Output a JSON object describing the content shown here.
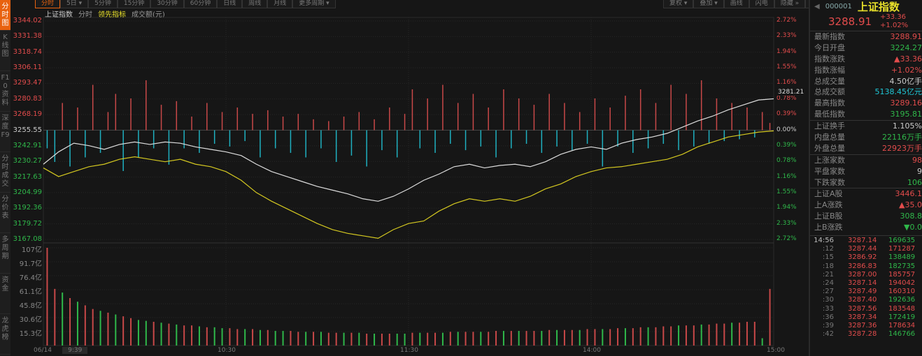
{
  "sidebar": [
    "分时图",
    "K线图",
    "F10资料",
    "深度F9",
    "分时成交",
    "分价表",
    "多周期",
    "资金",
    "龙虎榜"
  ],
  "toolbar": {
    "left": [
      "分时",
      "5日 ▾",
      "5分钟",
      "15分钟",
      "30分钟",
      "60分钟",
      "日线",
      "周线",
      "月线",
      "更多周期 ▾"
    ],
    "right": [
      "复权 ▾",
      "叠加 ▾",
      "画线",
      "闪电",
      "隐藏 »",
      "⤢"
    ]
  },
  "legend": {
    "index": "上证指数",
    "mode": "分时",
    "lead": "领先指标",
    "amount": "成交额(元)"
  },
  "colors": {
    "up": "#e24c4c",
    "down": "#2fb84a",
    "white": "#dddddd",
    "yellow": "#d4c820",
    "cyan": "#1fc7d6",
    "accent": "#e8620f"
  },
  "price_labels": [
    {
      "v": "3344.02",
      "c": "red"
    },
    {
      "v": "3331.38",
      "c": "red"
    },
    {
      "v": "3318.74",
      "c": "red"
    },
    {
      "v": "3306.11",
      "c": "red"
    },
    {
      "v": "3293.47",
      "c": "red"
    },
    {
      "v": "3280.83",
      "c": "red"
    },
    {
      "v": "3268.19",
      "c": "red"
    },
    {
      "v": "3255.55",
      "c": "white"
    },
    {
      "v": "3242.91",
      "c": "green"
    },
    {
      "v": "3230.27",
      "c": "green"
    },
    {
      "v": "3217.63",
      "c": "green"
    },
    {
      "v": "3204.99",
      "c": "green"
    },
    {
      "v": "3192.36",
      "c": "green"
    },
    {
      "v": "3179.72",
      "c": "green"
    },
    {
      "v": "3167.08",
      "c": "green"
    }
  ],
  "pct_labels": [
    "2.72%",
    "2.33%",
    "1.94%",
    "1.55%",
    "1.16%",
    "0.78%",
    "0.39%",
    "0.00%",
    "0.39%",
    "0.78%",
    "1.16%",
    "1.55%",
    "1.94%",
    "2.33%",
    "2.72%"
  ],
  "vol_labels": [
    "107亿",
    "91.7亿",
    "76.4亿",
    "61.1亿",
    "45.8亿",
    "30.6亿",
    "15.3亿"
  ],
  "time_labels": [
    "06/14",
    "9:39",
    "10:30",
    "11:30",
    "14:00",
    "15:00"
  ],
  "last_price_tag": "3281.21",
  "chart_data": {
    "type": "line",
    "price_range": [
      3167.08,
      3344.02
    ],
    "prev_close": 3255.55,
    "minutes_per_point": 5,
    "index_line": [
      3228,
      3238,
      3245,
      3243,
      3240,
      3244,
      3246,
      3244,
      3246,
      3245,
      3242,
      3240,
      3238,
      3235,
      3228,
      3222,
      3218,
      3214,
      3210,
      3207,
      3204,
      3200,
      3198,
      3202,
      3208,
      3215,
      3220,
      3226,
      3228,
      3225,
      3227,
      3228,
      3226,
      3230,
      3236,
      3240,
      3242,
      3240,
      3245,
      3248,
      3250,
      3253,
      3258,
      3263,
      3267,
      3272,
      3276,
      3280,
      3281
    ],
    "lead_line": [
      3225,
      3218,
      3222,
      3226,
      3228,
      3232,
      3234,
      3232,
      3230,
      3232,
      3228,
      3226,
      3222,
      3215,
      3205,
      3198,
      3192,
      3186,
      3180,
      3175,
      3172,
      3170,
      3168,
      3175,
      3180,
      3182,
      3190,
      3196,
      3200,
      3198,
      3200,
      3198,
      3202,
      3208,
      3212,
      3218,
      3222,
      3225,
      3226,
      3228,
      3230,
      3232,
      3236,
      3242,
      3246,
      3250,
      3252,
      3254,
      3255
    ],
    "lead_bars": [
      -20,
      -35,
      30,
      -40,
      25,
      -30,
      50,
      -25,
      20,
      40,
      -45,
      35,
      -30,
      55,
      -20,
      28,
      -38,
      32,
      -20,
      15,
      -25,
      30,
      -15,
      20,
      -18,
      25,
      -12,
      18,
      -30,
      22,
      -20,
      15,
      -25,
      18,
      -30,
      12,
      -20,
      10,
      -35,
      15,
      -28,
      20,
      -40,
      12,
      -22,
      25,
      -30,
      18,
      45,
      -20,
      35,
      -25,
      50,
      -15,
      30,
      -22,
      40,
      -18,
      25,
      -30,
      45,
      -20,
      35,
      -15,
      28,
      -25,
      40,
      -18,
      30,
      -22,
      20,
      -15,
      35,
      -40,
      25,
      -18,
      38,
      -25,
      45,
      -20,
      30,
      -15,
      50,
      -22,
      40,
      -18,
      55,
      -15,
      35,
      -12,
      30,
      -10,
      25,
      -8,
      20,
      8
    ],
    "volume": [
      107,
      62,
      58,
      52,
      48,
      44,
      40,
      38,
      36,
      34,
      32,
      30,
      28,
      27,
      26,
      25,
      24,
      23,
      22,
      22,
      21,
      20,
      20,
      19,
      19,
      18,
      18,
      18,
      17,
      17,
      16,
      16,
      16,
      15,
      15,
      15,
      15,
      14,
      14,
      14,
      14,
      14,
      13,
      13,
      13,
      13,
      13,
      13,
      14,
      14,
      14,
      14,
      14,
      15,
      15,
      15,
      15,
      15,
      15,
      16,
      16,
      16,
      16,
      16,
      16,
      16,
      17,
      17,
      17,
      17,
      17,
      18,
      18,
      18,
      18,
      19,
      19,
      19,
      20,
      20,
      20,
      21,
      21,
      22,
      22,
      22,
      23,
      23,
      24,
      24,
      25,
      25,
      26,
      26,
      8,
      62
    ],
    "volume_up": [
      1,
      1,
      0,
      1,
      0,
      1,
      1,
      0,
      1,
      0,
      1,
      1,
      0,
      0,
      1,
      0,
      1,
      0,
      1,
      1,
      0,
      1,
      0,
      0,
      1,
      1,
      0,
      1,
      0,
      1,
      0,
      0,
      1,
      1,
      0,
      1,
      0,
      1,
      1,
      0,
      1,
      0,
      1,
      0,
      1,
      1,
      0,
      0,
      1,
      0,
      1,
      1,
      0,
      1,
      0,
      1,
      1,
      0,
      1,
      1,
      0,
      1,
      0,
      1,
      1,
      0,
      1,
      0,
      1,
      1,
      0,
      1,
      1,
      0,
      1,
      1,
      0,
      1,
      1,
      0,
      1,
      1,
      1,
      0,
      1,
      1,
      0,
      1,
      1,
      1,
      0,
      1,
      1,
      1,
      0,
      1
    ],
    "vol_max": 107
  },
  "quote": {
    "code": "000001",
    "name": "上证指数",
    "price": "3288.91",
    "change": "+33.36",
    "pct": "+1.02%"
  },
  "stats": [
    {
      "k": "最新指数",
      "v": "3288.91",
      "c": "red"
    },
    {
      "k": "今日开盘",
      "v": "3224.27",
      "c": "green"
    },
    {
      "k": "指数涨跌",
      "v": "▲33.36",
      "c": "red"
    },
    {
      "k": "指数涨幅",
      "v": "+1.02%",
      "c": "red"
    },
    {
      "k": "总成交量",
      "v": "4.50亿手",
      "c": "white"
    },
    {
      "k": "总成交额",
      "v": "5138.45亿元",
      "c": "cyan"
    },
    {
      "k": "最高指数",
      "v": "3289.16",
      "c": "red"
    },
    {
      "k": "最低指数",
      "v": "3195.81",
      "c": "green",
      "sep": 1
    },
    {
      "k": "上证换手",
      "v": "1.105%",
      "c": "white"
    },
    {
      "k": "内盘总量",
      "v": "22116万手",
      "c": "green"
    },
    {
      "k": "外盘总量",
      "v": "22923万手",
      "c": "red",
      "sep": 1
    },
    {
      "k": "上涨家数",
      "v": "98",
      "c": "red"
    },
    {
      "k": "平盘家数",
      "v": "9",
      "c": "white"
    },
    {
      "k": "下跌家数",
      "v": "106",
      "c": "green",
      "sep": 1
    },
    {
      "k": "上证A股",
      "v": "3446.1",
      "c": "red"
    },
    {
      "k": "上A涨跌",
      "v": "▲35.0",
      "c": "red"
    },
    {
      "k": "上证B股",
      "v": "308.8",
      "c": "green"
    },
    {
      "k": "上B涨跌",
      "v": "▼0.0",
      "c": "green"
    }
  ],
  "ticks": [
    {
      "t": "14:56",
      "p": "3287.14",
      "v": "169635",
      "c": "green"
    },
    {
      "t": ":12",
      "p": "3287.44",
      "v": "171287",
      "c": "red"
    },
    {
      "t": ":15",
      "p": "3286.92",
      "v": "138489",
      "c": "green"
    },
    {
      "t": ":18",
      "p": "3286.83",
      "v": "182735",
      "c": "green"
    },
    {
      "t": ":21",
      "p": "3287.00",
      "v": "185757",
      "c": "red"
    },
    {
      "t": ":24",
      "p": "3287.14",
      "v": "194042",
      "c": "red"
    },
    {
      "t": ":27",
      "p": "3287.49",
      "v": "160310",
      "c": "red"
    },
    {
      "t": ":30",
      "p": "3287.40",
      "v": "192636",
      "c": "green"
    },
    {
      "t": ":33",
      "p": "3287.56",
      "v": "183548",
      "c": "red"
    },
    {
      "t": ":36",
      "p": "3287.34",
      "v": "172419",
      "c": "green"
    },
    {
      "t": ":39",
      "p": "3287.36",
      "v": "178634",
      "c": "red"
    },
    {
      "t": ":42",
      "p": "3287.28",
      "v": "146766",
      "c": "green"
    }
  ]
}
